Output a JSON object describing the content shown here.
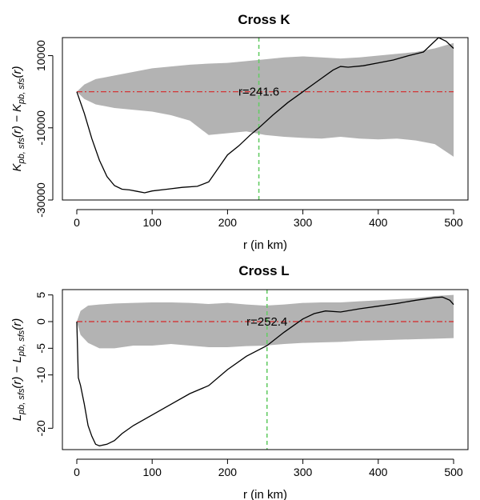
{
  "chart_data": [
    {
      "type": "line",
      "title": "Cross K",
      "xlabel": "r (in km)",
      "ylabel_main": "K",
      "ylabel_sub": "pb, sfs",
      "ylabel_arg": "(r)",
      "ylabel_minus": " − ",
      "xlim": [
        0,
        500
      ],
      "ylim": [
        -30000,
        15000
      ],
      "x_ticks": [
        0,
        100,
        200,
        300,
        400,
        500
      ],
      "x_tick_labels": [
        "0",
        "100",
        "200",
        "300",
        "400",
        "500"
      ],
      "y_ticks": [
        10000,
        -10000,
        -30000
      ],
      "y_tick_labels": [
        "10000",
        "-10000",
        "-30000"
      ],
      "grid": false,
      "vline_x": 241.6,
      "annotation": "r=241.6",
      "reference_line_y": 0,
      "colors": {
        "envelope": "#b3b3b3",
        "observed": "#000000",
        "reference": "#d62728",
        "vline": "#66cc66"
      },
      "envelope": {
        "x": [
          0,
          10,
          25,
          50,
          75,
          100,
          125,
          150,
          175,
          200,
          225,
          250,
          275,
          300,
          325,
          350,
          375,
          400,
          425,
          450,
          475,
          500
        ],
        "upper": [
          0,
          2000,
          3500,
          4500,
          5500,
          6500,
          7000,
          7500,
          7800,
          8000,
          8500,
          9000,
          9500,
          9800,
          9500,
          9200,
          9500,
          10000,
          10500,
          11000,
          12000,
          13500
        ],
        "lower": [
          0,
          -2000,
          -3500,
          -4500,
          -5000,
          -5500,
          -6500,
          -8000,
          -12000,
          -11500,
          -11000,
          -12000,
          -12500,
          -12800,
          -13000,
          -12500,
          -13000,
          -13200,
          -13000,
          -13500,
          -14500,
          -18000
        ]
      },
      "series": [
        {
          "x": [
            0,
            10,
            20,
            30,
            40,
            50,
            60,
            70,
            80,
            90,
            100,
            120,
            140,
            160,
            175,
            185,
            200,
            215,
            230,
            241.6,
            260,
            280,
            300,
            320,
            340,
            350,
            360,
            380,
            400,
            420,
            440,
            460,
            470,
            480,
            490,
            500
          ],
          "y": [
            0,
            -6000,
            -13000,
            -19000,
            -23500,
            -26000,
            -27000,
            -27200,
            -27600,
            -28000,
            -27500,
            -27000,
            -26500,
            -26200,
            -25000,
            -22000,
            -17500,
            -15000,
            -12000,
            -10000,
            -6500,
            -3000,
            0,
            3000,
            6000,
            7000,
            6800,
            7200,
            8000,
            8800,
            10000,
            11000,
            13000,
            15000,
            14000,
            12000
          ]
        }
      ]
    },
    {
      "type": "line",
      "title": "Cross L",
      "xlabel": "r (in km)",
      "ylabel_main": "L",
      "ylabel_sub": "pb, sfs",
      "ylabel_arg": "(r)",
      "ylabel_minus": " − ",
      "xlim": [
        0,
        500
      ],
      "ylim": [
        -24,
        6
      ],
      "x_ticks": [
        0,
        100,
        200,
        300,
        400,
        500
      ],
      "x_tick_labels": [
        "0",
        "100",
        "200",
        "300",
        "400",
        "500"
      ],
      "y_ticks": [
        5,
        0,
        -5,
        -10,
        -20
      ],
      "y_tick_labels": [
        "5",
        "0",
        "-5",
        "-10",
        "-20"
      ],
      "grid": false,
      "vline_x": 252.4,
      "annotation": "r=252.4",
      "reference_line_y": 0,
      "colors": {
        "envelope": "#b3b3b3",
        "observed": "#000000",
        "reference": "#d62728",
        "vline": "#66cc66"
      },
      "envelope": {
        "x": [
          0,
          5,
          15,
          30,
          50,
          75,
          100,
          125,
          150,
          175,
          200,
          225,
          250,
          275,
          300,
          325,
          350,
          375,
          400,
          425,
          450,
          475,
          500
        ],
        "upper": [
          0,
          2.0,
          3.0,
          3.2,
          3.4,
          3.5,
          3.6,
          3.6,
          3.5,
          3.3,
          3.5,
          3.2,
          3.0,
          3.2,
          3.5,
          3.6,
          3.6,
          3.8,
          4.0,
          4.2,
          4.4,
          4.8,
          5.0
        ],
        "lower": [
          0,
          -2.5,
          -4.0,
          -5.0,
          -5.0,
          -4.5,
          -4.5,
          -4.2,
          -4.5,
          -4.8,
          -4.8,
          -4.6,
          -4.5,
          -4.2,
          -4.0,
          -3.9,
          -3.8,
          -3.6,
          -3.5,
          -3.4,
          -3.3,
          -3.2,
          -3.1
        ]
      },
      "series": [
        {
          "x": [
            0,
            2,
            5,
            10,
            15,
            20,
            25,
            30,
            40,
            50,
            60,
            75,
            100,
            125,
            150,
            175,
            200,
            225,
            252.4,
            275,
            300,
            315,
            330,
            350,
            375,
            400,
            425,
            450,
            475,
            485,
            495,
            500
          ],
          "y": [
            0,
            -10.5,
            -12,
            -15.5,
            -19.5,
            -21.5,
            -23,
            -23.3,
            -23,
            -22.3,
            -21,
            -19.5,
            -17.5,
            -15.5,
            -13.5,
            -12,
            -9,
            -6.5,
            -4.5,
            -2,
            0.5,
            1.5,
            2,
            1.8,
            2.4,
            2.9,
            3.4,
            4.0,
            4.5,
            4.6,
            4.0,
            3.2
          ]
        }
      ]
    }
  ]
}
